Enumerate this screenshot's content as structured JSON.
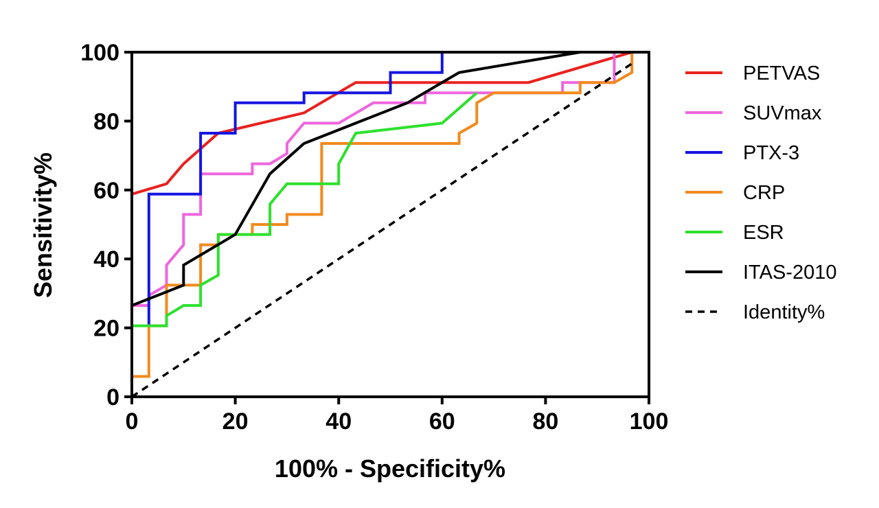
{
  "chart_data": {
    "type": "line",
    "xlabel": "100% - Specificity%",
    "ylabel": "Sensitivity%",
    "xlim": [
      0,
      100
    ],
    "ylim": [
      0,
      100
    ],
    "xticks": [
      "0",
      "20",
      "40",
      "60",
      "80",
      "100"
    ],
    "yticks": [
      "0",
      "20",
      "40",
      "60",
      "80",
      "100"
    ],
    "grid": false,
    "legend_position": "right",
    "series": [
      {
        "name": "PETVAS",
        "color": "#e8221f",
        "dash": "solid",
        "points": [
          [
            0,
            26.5
          ],
          [
            0,
            58.8
          ],
          [
            6.7,
            61.8
          ],
          [
            10,
            67.6
          ],
          [
            16.7,
            76.5
          ],
          [
            33.3,
            82.4
          ],
          [
            43.3,
            91.2
          ],
          [
            76.7,
            91.2
          ],
          [
            96.7,
            100
          ]
        ]
      },
      {
        "name": "SUVmax",
        "color": "#ee66dd",
        "dash": "solid",
        "points": [
          [
            0,
            26.5
          ],
          [
            3.3,
            26.5
          ],
          [
            3.3,
            29.4
          ],
          [
            6.7,
            32.4
          ],
          [
            6.7,
            38.2
          ],
          [
            10,
            44.1
          ],
          [
            10,
            52.9
          ],
          [
            13.3,
            52.9
          ],
          [
            13.3,
            64.7
          ],
          [
            23.3,
            64.7
          ],
          [
            23.3,
            67.6
          ],
          [
            26.7,
            67.6
          ],
          [
            30,
            70.6
          ],
          [
            30,
            73.5
          ],
          [
            33.3,
            79.4
          ],
          [
            40,
            79.4
          ],
          [
            46.7,
            85.3
          ],
          [
            56.7,
            85.3
          ],
          [
            56.7,
            88.2
          ],
          [
            83.3,
            88.2
          ],
          [
            83.3,
            91.2
          ],
          [
            93.3,
            91.2
          ],
          [
            93.3,
            100
          ],
          [
            96.7,
            100
          ]
        ]
      },
      {
        "name": "PTX-3",
        "color": "#1515e0",
        "dash": "solid",
        "points": [
          [
            3.3,
            20.6
          ],
          [
            3.3,
            58.8
          ],
          [
            13.3,
            58.8
          ],
          [
            13.3,
            64.7
          ],
          [
            13.3,
            76.5
          ],
          [
            20,
            76.5
          ],
          [
            20,
            85.3
          ],
          [
            33.3,
            85.3
          ],
          [
            33.3,
            88.2
          ],
          [
            50,
            88.2
          ],
          [
            50,
            94.1
          ],
          [
            60,
            94.1
          ],
          [
            60,
            100
          ],
          [
            96.7,
            100
          ]
        ]
      },
      {
        "name": "CRP",
        "color": "#f28a1e",
        "dash": "solid",
        "points": [
          [
            0,
            5.9
          ],
          [
            3.3,
            5.9
          ],
          [
            3.3,
            20.6
          ],
          [
            6.7,
            20.6
          ],
          [
            6.7,
            32.4
          ],
          [
            13.3,
            32.4
          ],
          [
            13.3,
            44.1
          ],
          [
            16.7,
            44.1
          ],
          [
            16.7,
            47.1
          ],
          [
            23.3,
            47.1
          ],
          [
            23.3,
            50
          ],
          [
            30,
            50
          ],
          [
            30,
            52.9
          ],
          [
            36.7,
            52.9
          ],
          [
            36.7,
            73.5
          ],
          [
            63.3,
            73.5
          ],
          [
            63.3,
            76.5
          ],
          [
            66.7,
            79.4
          ],
          [
            66.7,
            85.3
          ],
          [
            70,
            88.2
          ],
          [
            86.7,
            88.2
          ],
          [
            86.7,
            91.2
          ],
          [
            93.3,
            91.2
          ],
          [
            96.7,
            94.1
          ],
          [
            96.7,
            100
          ]
        ]
      },
      {
        "name": "ESR",
        "color": "#2ee02e",
        "dash": "solid",
        "points": [
          [
            0,
            20.6
          ],
          [
            6.7,
            20.6
          ],
          [
            6.7,
            23.5
          ],
          [
            10,
            26.5
          ],
          [
            13.3,
            26.5
          ],
          [
            13.3,
            32.4
          ],
          [
            16.7,
            35.3
          ],
          [
            16.7,
            47.1
          ],
          [
            26.7,
            47.1
          ],
          [
            26.7,
            55.9
          ],
          [
            30,
            61.8
          ],
          [
            40,
            61.8
          ],
          [
            40,
            67.6
          ],
          [
            43.3,
            76.5
          ],
          [
            60,
            79.4
          ],
          [
            66.7,
            88.2
          ]
        ]
      },
      {
        "name": "ITAS-2010",
        "color": "#000000",
        "dash": "solid",
        "points": [
          [
            0,
            26.5
          ],
          [
            10,
            32.4
          ],
          [
            10,
            38.2
          ],
          [
            20,
            47.1
          ],
          [
            26.7,
            64.7
          ],
          [
            33.3,
            73.5
          ],
          [
            43.3,
            79.4
          ],
          [
            53.3,
            85.3
          ],
          [
            63.3,
            94.1
          ],
          [
            86.7,
            100
          ]
        ]
      },
      {
        "name": "Identity%",
        "color": "#000000",
        "dash": "dashed",
        "points": [
          [
            0,
            0
          ],
          [
            96.7,
            96.7
          ]
        ]
      }
    ]
  }
}
